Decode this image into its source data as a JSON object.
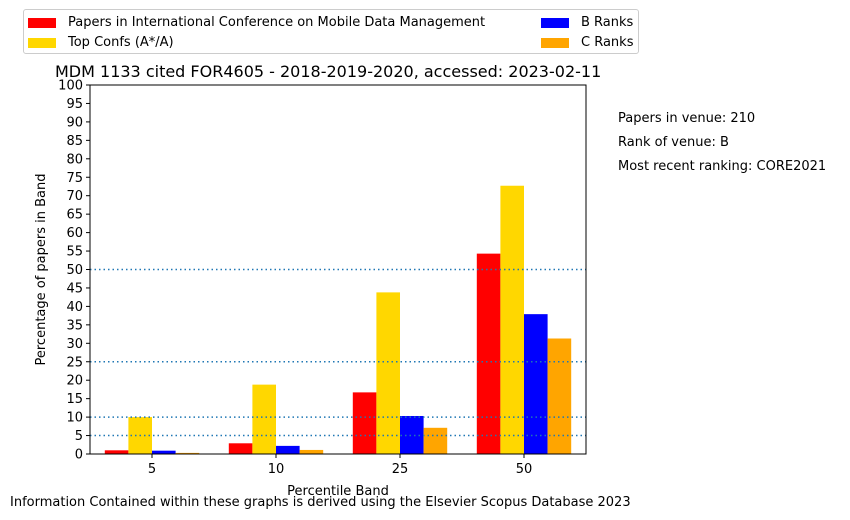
{
  "chart_data": {
    "type": "bar",
    "title": "MDM 1133 cited FOR4605 - 2018-2019-2020, accessed: 2023-02-11",
    "xlabel": "Percentile Band",
    "ylabel": "Percentage of papers in Band",
    "categories": [
      "5",
      "10",
      "25",
      "50"
    ],
    "ylim": [
      0,
      100
    ],
    "yticks": [
      0,
      5,
      10,
      15,
      20,
      25,
      30,
      35,
      40,
      45,
      50,
      55,
      60,
      65,
      70,
      75,
      80,
      85,
      90,
      95,
      100
    ],
    "reference_lines": [
      5,
      10,
      25,
      50
    ],
    "reference_line_color": "#1f77b4",
    "series": [
      {
        "name": "Papers in International Conference on Mobile Data Management",
        "color": "#ff0000",
        "values": [
          1.0,
          2.9,
          16.7,
          54.3
        ]
      },
      {
        "name": "Top Confs (A*/A)",
        "color": "#ffd700",
        "values": [
          10.0,
          18.8,
          43.8,
          72.7
        ]
      },
      {
        "name": "B Ranks",
        "color": "#0000ff",
        "values": [
          0.9,
          2.2,
          10.3,
          37.9
        ]
      },
      {
        "name": "C Ranks",
        "color": "#ffa500",
        "values": [
          0.3,
          1.1,
          7.1,
          31.3
        ]
      }
    ],
    "grid": false,
    "legend_placement": "top"
  },
  "side_notes": [
    "Papers in venue: 210",
    "Rank of venue: B",
    "Most recent ranking: CORE2021"
  ],
  "footer": "Information Contained within these graphs is derived using the Elsevier Scopus Database 2023"
}
